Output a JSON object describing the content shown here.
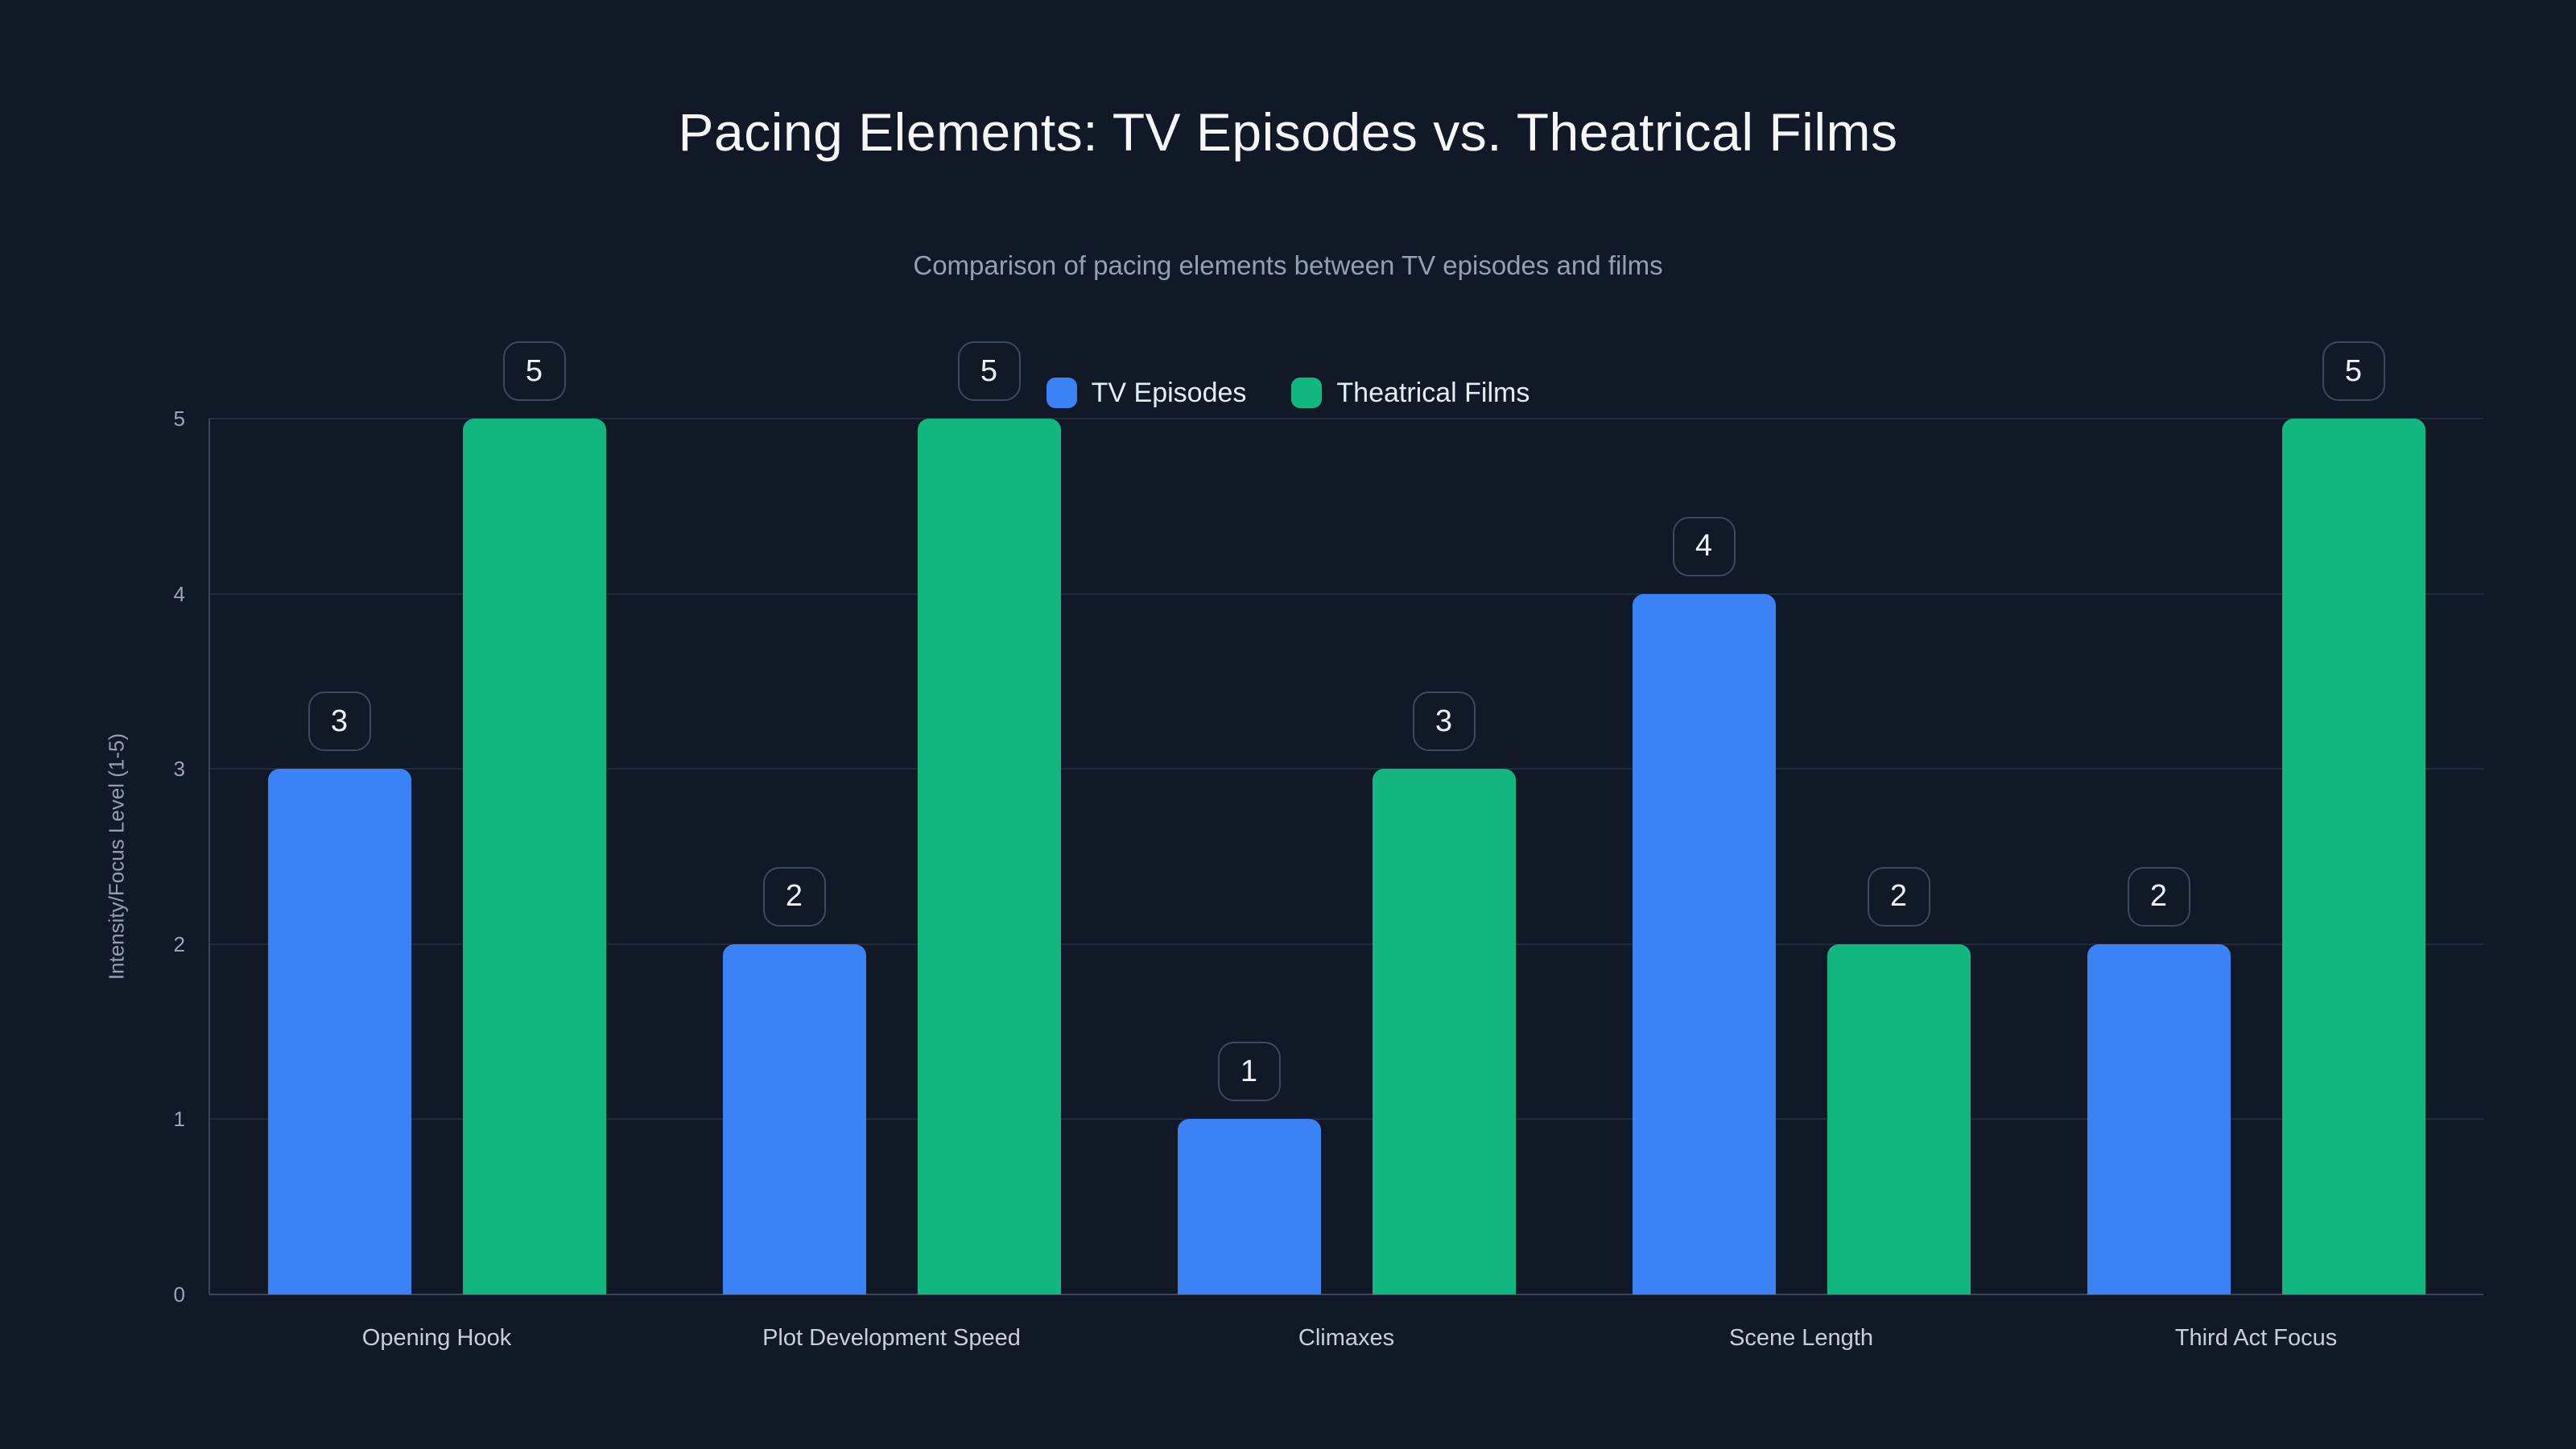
{
  "chart_data": {
    "type": "bar",
    "title": "Pacing Elements: TV Episodes vs. Theatrical Films",
    "subtitle": "Comparison of pacing elements between TV episodes and films",
    "categories": [
      "Opening Hook",
      "Plot Development Speed",
      "Climaxes",
      "Scene Length",
      "Third Act Focus"
    ],
    "series": [
      {
        "name": "TV Episodes",
        "color": "#3b82f6",
        "values": [
          3,
          2,
          1,
          4,
          2
        ]
      },
      {
        "name": "Theatrical Films",
        "color": "#12b77f",
        "values": [
          5,
          5,
          3,
          2,
          5
        ]
      }
    ],
    "xlabel": "",
    "ylabel": "Intensity/Focus Level (1-5)",
    "ylim": [
      0,
      5
    ],
    "yticks": [
      0,
      1,
      2,
      3,
      4,
      5
    ],
    "grid": true,
    "legend_position": "top",
    "value_labels": true
  },
  "theme": {
    "background": "#111826",
    "grid_line": "#222b3c",
    "axis_line": "#39455a",
    "title_color": "#f4f6f8",
    "subtitle_color": "#93a0b1",
    "tick_color": "#9aa6b6",
    "category_color": "#c6cfda",
    "axis_title_color": "#94a0b0",
    "legend_text_color": "#e8edf3",
    "value_box_border": "#3d495c",
    "value_box_text": "#eef2f6"
  }
}
